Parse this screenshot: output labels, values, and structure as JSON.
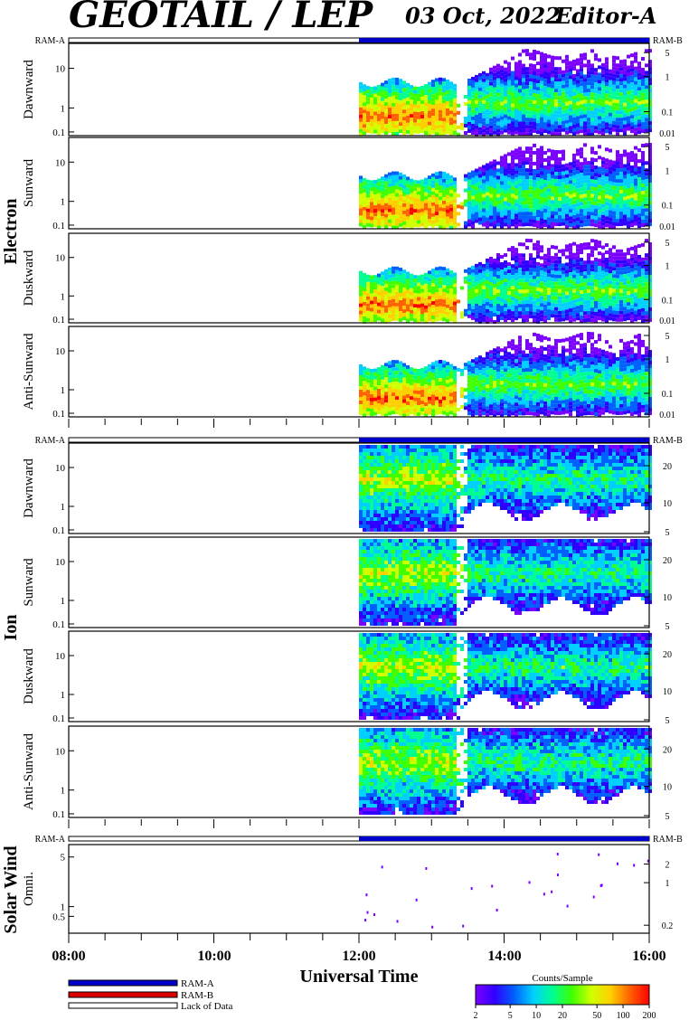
{
  "header": {
    "title": "GEOTAIL / LEP",
    "date": "03 Oct, 2022",
    "editor": "Editor-A"
  },
  "ram_labels": {
    "a": "RAM-A",
    "b": "RAM-B"
  },
  "groups": {
    "electron": "Electron",
    "ion": "Ion",
    "solar_wind": "Solar Wind"
  },
  "legend": {
    "ram_a": "RAM-A",
    "ram_b": "RAM-B",
    "lack": "Lack of Data",
    "colorbar_title": "Counts/Sample",
    "colorbar_ticks": [
      "2",
      "5",
      "10",
      "20",
      "50",
      "100",
      "200"
    ]
  },
  "colors": {
    "ram_a": "#0000cc",
    "ram_b": "#dd0000",
    "lack": "#ffffff",
    "colorbar": [
      "#7a00ff",
      "#3000ff",
      "#0060ff",
      "#00d0ff",
      "#00ff90",
      "#40ff00",
      "#d0ff00",
      "#ffd000",
      "#ff6000",
      "#ff0000"
    ]
  },
  "chart_data": {
    "type": "heatmap",
    "xlabel": "Universal Time",
    "x_ticks": [
      "08:00",
      "10:00",
      "12:00",
      "14:00",
      "16:00"
    ],
    "x_range_hours": [
      8,
      16
    ],
    "data_start_hour": 12,
    "colorbar_range": [
      2,
      200
    ],
    "colorbar_scale": "log",
    "panels": [
      {
        "group": "Electron",
        "label": "Dawnward",
        "left_ticks": [
          "10",
          "1",
          "0.1"
        ],
        "right_ticks": [
          "5",
          "1",
          "0.1",
          "0.01"
        ]
      },
      {
        "group": "Electron",
        "label": "Sunward",
        "left_ticks": [
          "10",
          "1",
          "0.1"
        ],
        "right_ticks": [
          "5",
          "1",
          "0.1",
          "0.01"
        ]
      },
      {
        "group": "Electron",
        "label": "Duskward",
        "left_ticks": [
          "10",
          "1",
          "0.1"
        ],
        "right_ticks": [
          "5",
          "1",
          "0.1",
          "0.01"
        ]
      },
      {
        "group": "Electron",
        "label": "Anti-Sunward",
        "left_ticks": [
          "10",
          "1",
          "0.1"
        ],
        "right_ticks": [
          "5",
          "1",
          "0.1",
          "0.01"
        ]
      },
      {
        "group": "Ion",
        "label": "Dawnward",
        "left_ticks": [
          "10",
          "1",
          "0.1"
        ],
        "right_ticks": [
          "20",
          "10",
          "5"
        ]
      },
      {
        "group": "Ion",
        "label": "Sunward",
        "left_ticks": [
          "10",
          "1",
          "0.1"
        ],
        "right_ticks": [
          "20",
          "10",
          "5"
        ]
      },
      {
        "group": "Ion",
        "label": "Duskward",
        "left_ticks": [
          "10",
          "1",
          "0.1"
        ],
        "right_ticks": [
          "20",
          "10",
          "5"
        ]
      },
      {
        "group": "Ion",
        "label": "Anti-Sunward",
        "left_ticks": [
          "10",
          "1",
          "0.1"
        ],
        "right_ticks": [
          "20",
          "10",
          "5"
        ]
      },
      {
        "group": "Solar Wind",
        "label": "Omni.",
        "left_ticks": [
          "5",
          "1",
          "0.5"
        ],
        "right_ticks": [
          "2",
          "1",
          "0.2"
        ]
      }
    ]
  }
}
